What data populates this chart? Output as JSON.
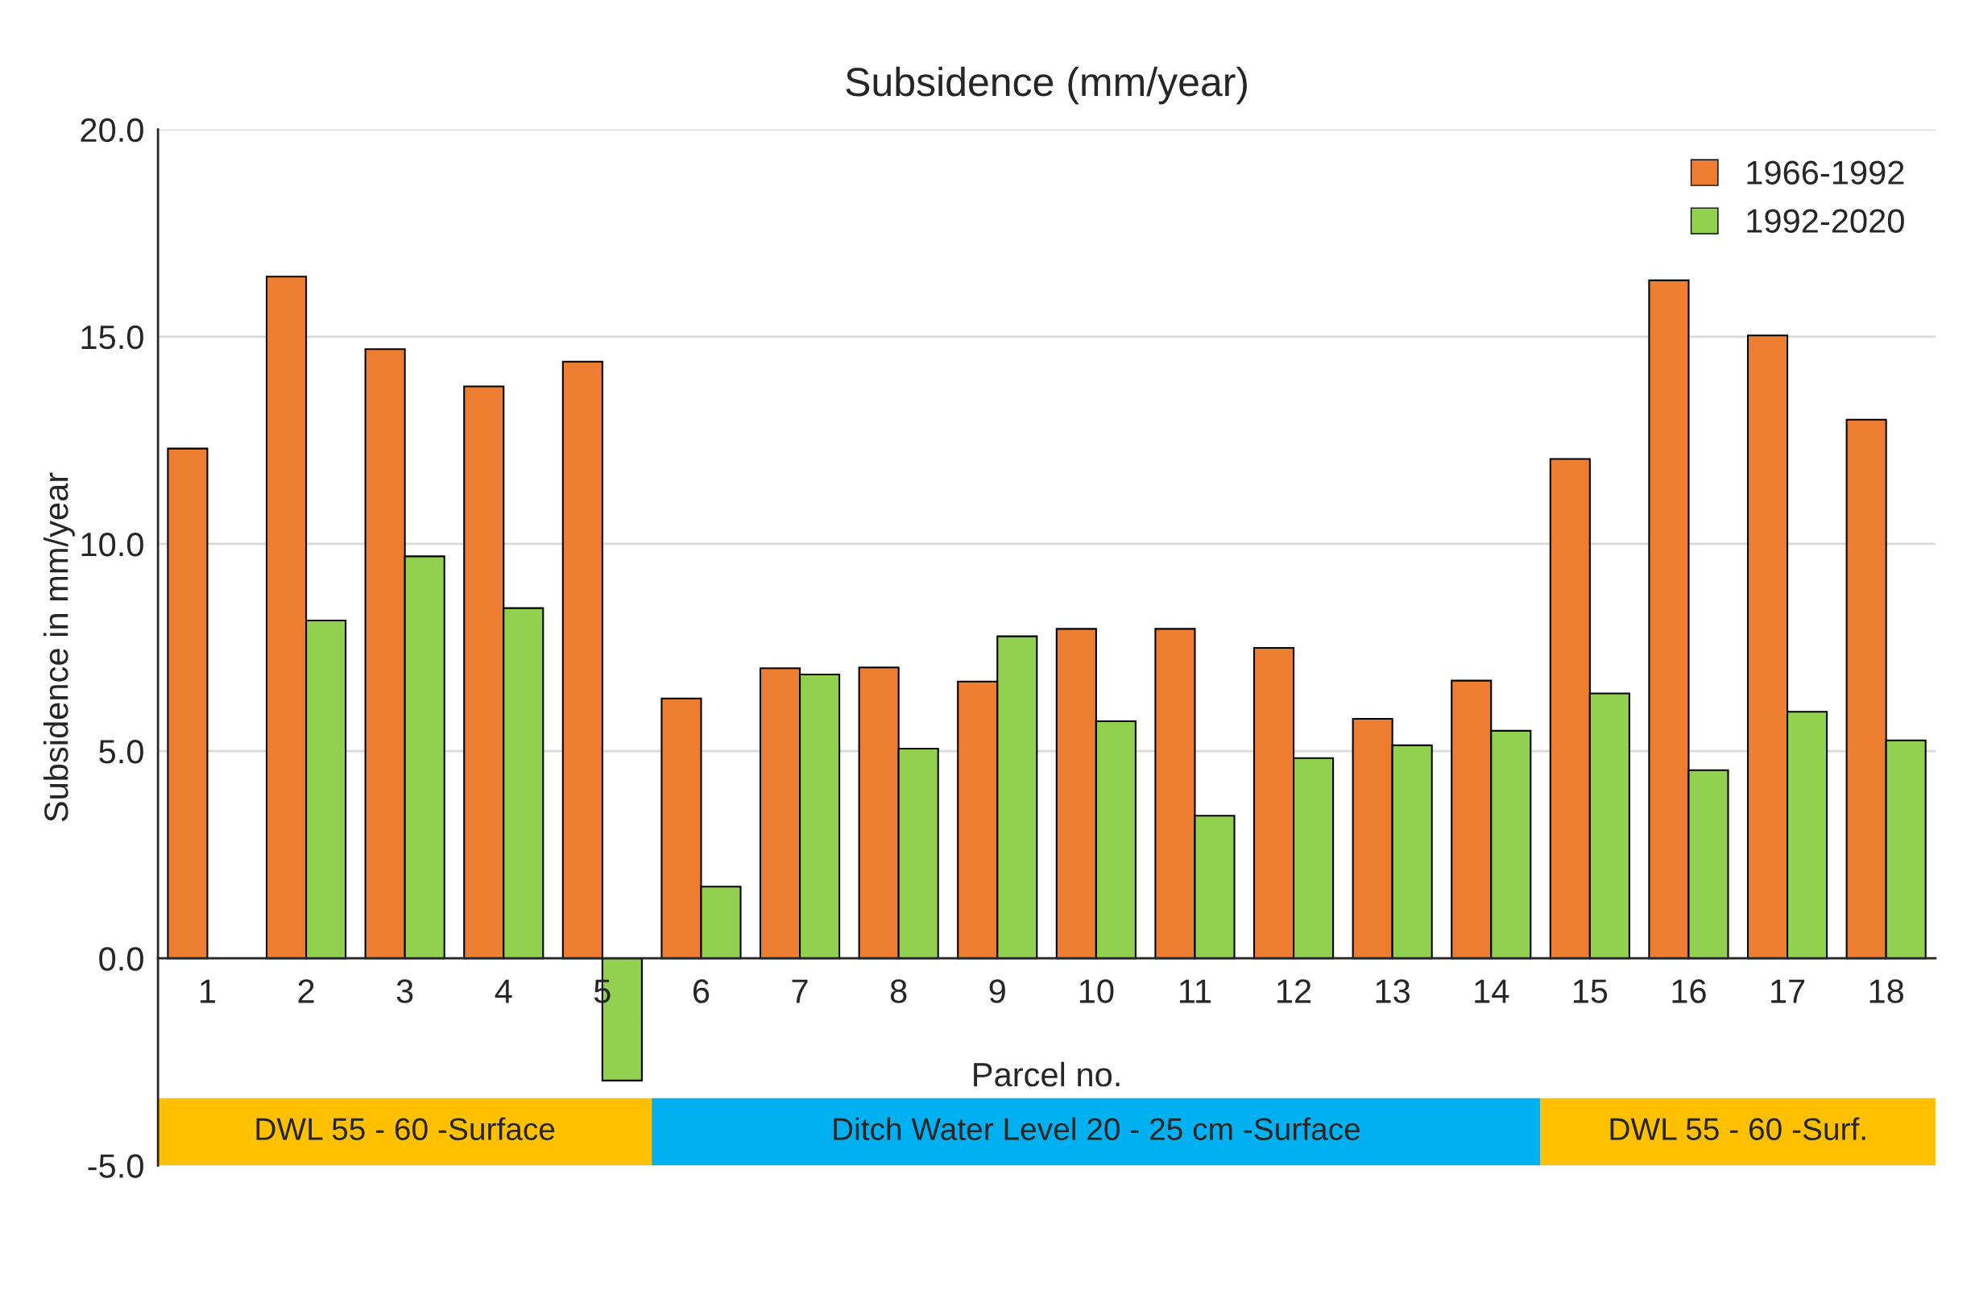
{
  "chart_data": {
    "type": "bar",
    "title": "Subsidence (mm/year)",
    "xlabel": "Parcel no.",
    "ylabel": "Subsidence in mm/year",
    "categories": [
      "1",
      "2",
      "3",
      "4",
      "5",
      "6",
      "7",
      "8",
      "9",
      "10",
      "11",
      "12",
      "13",
      "14",
      "15",
      "16",
      "17",
      "18"
    ],
    "series": [
      {
        "name": "1966-1992",
        "color": "#ed7d31",
        "values": [
          12.3,
          16.45,
          14.7,
          13.8,
          14.4,
          6.27,
          7.0,
          7.02,
          6.68,
          7.95,
          7.95,
          7.49,
          5.78,
          6.7,
          12.05,
          16.36,
          15.03,
          13.0
        ]
      },
      {
        "name": "1992-2020",
        "color": "#92d050",
        "values": [
          null,
          8.15,
          9.7,
          8.45,
          -2.95,
          1.73,
          6.85,
          5.06,
          7.77,
          5.72,
          3.44,
          4.83,
          5.14,
          5.49,
          6.39,
          4.54,
          5.95,
          5.26
        ]
      }
    ],
    "ylim": [
      -5,
      20
    ],
    "yticks": [
      {
        "value": -5,
        "label": "-5.0"
      },
      {
        "value": 0,
        "label": "0.0"
      },
      {
        "value": 5,
        "label": "5.0"
      },
      {
        "value": 10,
        "label": "10.0"
      },
      {
        "value": 15,
        "label": "15.0"
      },
      {
        "value": 20,
        "label": "20.0"
      }
    ],
    "grid": "y",
    "legend": "top right",
    "bands": [
      {
        "axis": "x",
        "from": "1",
        "to": "5",
        "label": "DWL 55 - 60 -Surface",
        "color": "#ffc000"
      },
      {
        "axis": "x",
        "from": "6",
        "to": "14",
        "label": "Ditch Water Level 20 - 25 cm -Surface",
        "color": "#00b0f0"
      },
      {
        "axis": "x",
        "from": "15",
        "to": "18",
        "label": "DWL 55 - 60 -Surf.",
        "color": "#ffc000"
      }
    ]
  }
}
